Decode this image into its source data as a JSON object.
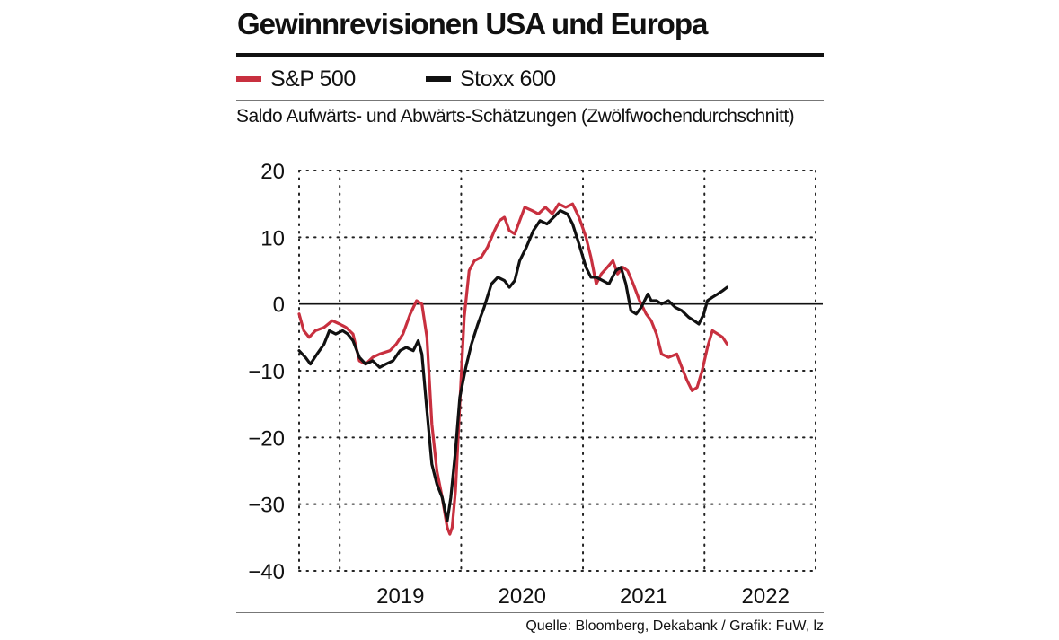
{
  "colors": {
    "sp500": "#c8303f",
    "stoxx600": "#111111",
    "grid": "#222222"
  },
  "chart_data": {
    "type": "line",
    "title": "Gewinnrevisionen USA und Europa",
    "ylabel": "Saldo Aufwärts- und Abwärts-Schätzungen (Zwölfwochendurchschnitt)",
    "xlabel": "",
    "source": "Quelle: Bloomberg, Dekabank / Grafik: FuW, lz",
    "ylim": [
      -40,
      20
    ],
    "yticks": [
      20,
      10,
      0,
      -10,
      -20,
      -30,
      -40
    ],
    "ytick_labels": [
      "20",
      "10",
      "0",
      "−10",
      "−20",
      "−30",
      "−40"
    ],
    "xlim": [
      "2018-09",
      "2022-12"
    ],
    "x_categories": [
      "2019",
      "2020",
      "2021",
      "2022"
    ],
    "grid": true,
    "legend": "top-left",
    "series": [
      {
        "name": "S&P 500",
        "color": "#c8303f",
        "points": [
          [
            "2018-09-01",
            -1.5
          ],
          [
            "2018-09-15",
            -4.0
          ],
          [
            "2018-10-01",
            -5.0
          ],
          [
            "2018-10-20",
            -4.0
          ],
          [
            "2018-11-15",
            -3.5
          ],
          [
            "2018-12-10",
            -2.5
          ],
          [
            "2019-01-01",
            -3.0
          ],
          [
            "2019-01-20",
            -3.5
          ],
          [
            "2019-02-10",
            -4.5
          ],
          [
            "2019-03-01",
            -8.5
          ],
          [
            "2019-03-20",
            -9.0
          ],
          [
            "2019-04-10",
            -8.0
          ],
          [
            "2019-05-01",
            -7.5
          ],
          [
            "2019-06-01",
            -7.0
          ],
          [
            "2019-06-20",
            -6.0
          ],
          [
            "2019-07-10",
            -4.5
          ],
          [
            "2019-08-01",
            -1.5
          ],
          [
            "2019-08-20",
            0.5
          ],
          [
            "2019-09-05",
            0.0
          ],
          [
            "2019-09-20",
            -5.0
          ],
          [
            "2019-10-05",
            -18.0
          ],
          [
            "2019-10-20",
            -25.0
          ],
          [
            "2019-11-05",
            -29.0
          ],
          [
            "2019-11-20",
            -33.5
          ],
          [
            "2019-11-28",
            -34.5
          ],
          [
            "2019-12-05",
            -33.5
          ],
          [
            "2019-12-15",
            -28.0
          ],
          [
            "2019-12-28",
            -15.0
          ],
          [
            "2020-01-10",
            -2.0
          ],
          [
            "2020-01-25",
            5.0
          ],
          [
            "2020-02-10",
            6.5
          ],
          [
            "2020-03-01",
            7.0
          ],
          [
            "2020-03-20",
            8.5
          ],
          [
            "2020-04-10",
            11.0
          ],
          [
            "2020-04-25",
            12.5
          ],
          [
            "2020-05-10",
            13.0
          ],
          [
            "2020-05-25",
            11.0
          ],
          [
            "2020-06-10",
            10.5
          ],
          [
            "2020-06-25",
            12.5
          ],
          [
            "2020-07-10",
            14.5
          ],
          [
            "2020-08-01",
            14.0
          ],
          [
            "2020-08-20",
            13.5
          ],
          [
            "2020-09-10",
            14.5
          ],
          [
            "2020-10-01",
            13.5
          ],
          [
            "2020-10-20",
            15.0
          ],
          [
            "2020-11-10",
            14.5
          ],
          [
            "2020-12-01",
            15.0
          ],
          [
            "2020-12-20",
            13.0
          ],
          [
            "2021-01-10",
            10.0
          ],
          [
            "2021-01-25",
            7.0
          ],
          [
            "2021-02-10",
            3.0
          ],
          [
            "2021-02-25",
            4.5
          ],
          [
            "2021-03-15",
            5.5
          ],
          [
            "2021-04-01",
            6.5
          ],
          [
            "2021-04-15",
            4.5
          ],
          [
            "2021-05-01",
            5.5
          ],
          [
            "2021-05-15",
            5.0
          ],
          [
            "2021-06-01",
            3.0
          ],
          [
            "2021-06-20",
            0.5
          ],
          [
            "2021-07-10",
            -1.5
          ],
          [
            "2021-07-25",
            -2.5
          ],
          [
            "2021-08-10",
            -4.5
          ],
          [
            "2021-08-25",
            -7.5
          ],
          [
            "2021-09-15",
            -8.0
          ],
          [
            "2021-10-10",
            -7.5
          ],
          [
            "2021-10-25",
            -9.5
          ],
          [
            "2021-11-10",
            -11.5
          ],
          [
            "2021-11-25",
            -13.0
          ],
          [
            "2021-12-10",
            -12.5
          ],
          [
            "2021-12-25",
            -10.0
          ],
          [
            "2022-01-10",
            -6.5
          ],
          [
            "2022-01-25",
            -4.0
          ],
          [
            "2022-02-10",
            -4.5
          ],
          [
            "2022-02-25",
            -5.0
          ],
          [
            "2022-03-10",
            -6.0
          ]
        ]
      },
      {
        "name": "Stoxx 600",
        "color": "#111111",
        "points": [
          [
            "2018-09-01",
            -7.0
          ],
          [
            "2018-09-20",
            -8.0
          ],
          [
            "2018-10-05",
            -9.0
          ],
          [
            "2018-10-25",
            -7.5
          ],
          [
            "2018-11-15",
            -6.0
          ],
          [
            "2018-12-01",
            -4.0
          ],
          [
            "2018-12-20",
            -4.5
          ],
          [
            "2019-01-10",
            -4.0
          ],
          [
            "2019-01-25",
            -4.5
          ],
          [
            "2019-02-10",
            -5.5
          ],
          [
            "2019-03-01",
            -8.0
          ],
          [
            "2019-03-20",
            -9.0
          ],
          [
            "2019-04-10",
            -8.5
          ],
          [
            "2019-05-01",
            -9.5
          ],
          [
            "2019-05-20",
            -9.0
          ],
          [
            "2019-06-10",
            -8.5
          ],
          [
            "2019-07-01",
            -7.0
          ],
          [
            "2019-07-20",
            -6.5
          ],
          [
            "2019-08-10",
            -7.0
          ],
          [
            "2019-08-25",
            -5.5
          ],
          [
            "2019-09-05",
            -7.5
          ],
          [
            "2019-09-20",
            -16.0
          ],
          [
            "2019-10-05",
            -24.0
          ],
          [
            "2019-10-20",
            -27.0
          ],
          [
            "2019-11-05",
            -29.0
          ],
          [
            "2019-11-20",
            -32.5
          ],
          [
            "2019-12-01",
            -29.0
          ],
          [
            "2019-12-15",
            -22.0
          ],
          [
            "2019-12-28",
            -14.0
          ],
          [
            "2020-01-15",
            -9.5
          ],
          [
            "2020-02-01",
            -6.0
          ],
          [
            "2020-02-20",
            -3.0
          ],
          [
            "2020-03-10",
            -0.5
          ],
          [
            "2020-04-01",
            3.0
          ],
          [
            "2020-04-20",
            4.0
          ],
          [
            "2020-05-10",
            3.5
          ],
          [
            "2020-05-25",
            2.5
          ],
          [
            "2020-06-10",
            3.5
          ],
          [
            "2020-06-25",
            6.5
          ],
          [
            "2020-07-15",
            8.5
          ],
          [
            "2020-08-05",
            11.0
          ],
          [
            "2020-08-25",
            12.5
          ],
          [
            "2020-09-15",
            12.0
          ],
          [
            "2020-10-05",
            13.0
          ],
          [
            "2020-10-25",
            14.0
          ],
          [
            "2020-11-15",
            13.5
          ],
          [
            "2020-12-01",
            12.0
          ],
          [
            "2020-12-20",
            9.0
          ],
          [
            "2021-01-10",
            5.5
          ],
          [
            "2021-01-25",
            4.0
          ],
          [
            "2021-02-10",
            4.0
          ],
          [
            "2021-03-01",
            3.5
          ],
          [
            "2021-03-20",
            3.0
          ],
          [
            "2021-04-10",
            5.0
          ],
          [
            "2021-04-25",
            5.5
          ],
          [
            "2021-05-10",
            3.0
          ],
          [
            "2021-05-25",
            -1.0
          ],
          [
            "2021-06-10",
            -1.5
          ],
          [
            "2021-06-25",
            -0.5
          ],
          [
            "2021-07-15",
            1.5
          ],
          [
            "2021-07-25",
            0.5
          ],
          [
            "2021-08-10",
            0.5
          ],
          [
            "2021-08-25",
            0.0
          ],
          [
            "2021-09-15",
            0.5
          ],
          [
            "2021-10-05",
            -0.5
          ],
          [
            "2021-10-25",
            -1.0
          ],
          [
            "2021-11-15",
            -2.0
          ],
          [
            "2021-12-01",
            -2.5
          ],
          [
            "2021-12-15",
            -3.0
          ],
          [
            "2021-12-30",
            -1.5
          ],
          [
            "2022-01-10",
            0.5
          ],
          [
            "2022-01-25",
            1.0
          ],
          [
            "2022-02-10",
            1.5
          ],
          [
            "2022-02-25",
            2.0
          ],
          [
            "2022-03-10",
            2.5
          ]
        ]
      }
    ]
  }
}
